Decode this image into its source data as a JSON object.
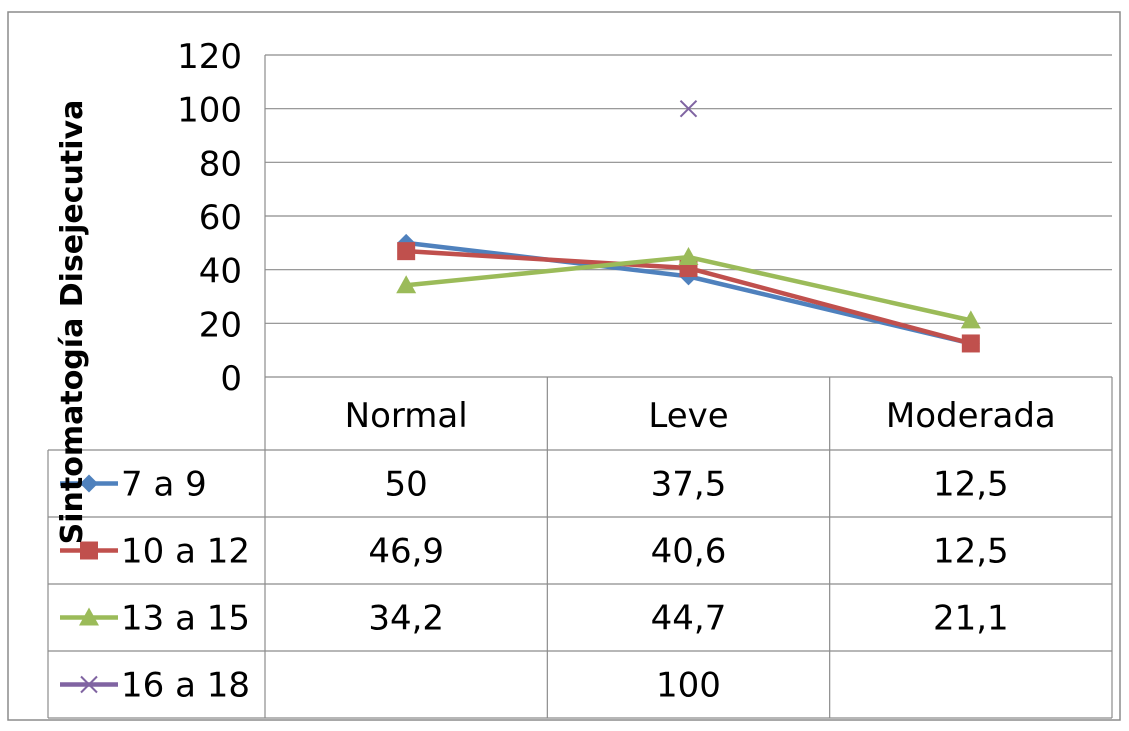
{
  "chart_data": {
    "type": "line",
    "title": "",
    "ylabel": "Sintomatogía Disejecutiva",
    "xlabel": "",
    "categories": [
      "Normal",
      "Leve",
      "Moderada"
    ],
    "ylim": [
      0,
      120
    ],
    "yticks": [
      "0",
      "20",
      "40",
      "60",
      "80",
      "100",
      "120"
    ],
    "grid": true,
    "legend": "data-table",
    "series": [
      {
        "name": "7 a 9",
        "values": [
          50,
          37.5,
          12.5
        ],
        "labels": [
          "50",
          "37,5",
          "12,5"
        ],
        "color": "#4f81bd",
        "marker": "diamond"
      },
      {
        "name": "10 a 12",
        "values": [
          46.9,
          40.6,
          12.5
        ],
        "labels": [
          "46,9",
          "40,6",
          "12,5"
        ],
        "color": "#c0504d",
        "marker": "square"
      },
      {
        "name": "13 a 15",
        "values": [
          34.2,
          44.7,
          21.1
        ],
        "labels": [
          "34,2",
          "44,7",
          "21,1"
        ],
        "color": "#9bbb59",
        "marker": "triangle"
      },
      {
        "name": "16 a 18",
        "values": [
          null,
          100,
          null
        ],
        "labels": [
          "",
          "100",
          ""
        ],
        "color": "#8064a2",
        "marker": "x"
      }
    ]
  }
}
